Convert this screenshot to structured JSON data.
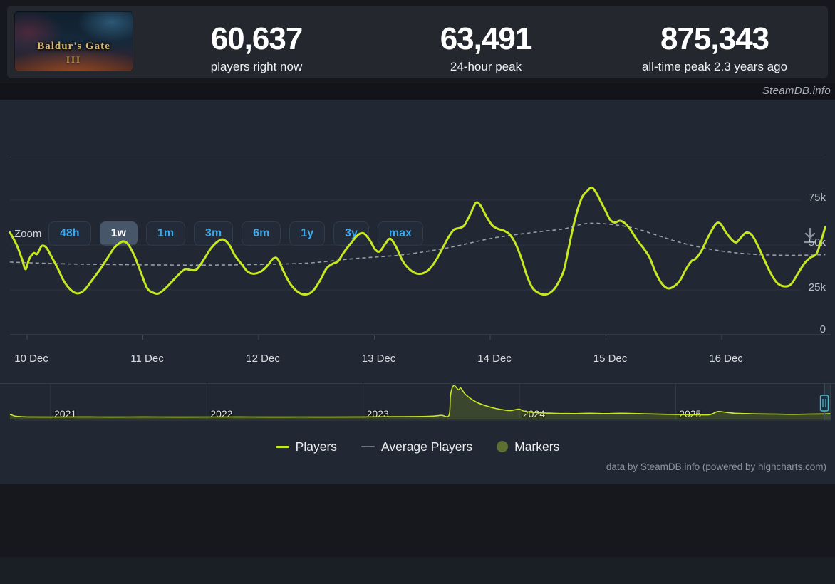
{
  "header": {
    "game_capsule": {
      "title": "Baldur's Gate",
      "numeral": "III"
    },
    "stats": [
      {
        "value": "60,637",
        "label": "players right now"
      },
      {
        "value": "63,491",
        "label": "24-hour peak"
      },
      {
        "value": "875,343",
        "label": "all-time peak 2.3 years ago"
      }
    ]
  },
  "watermark": "SteamDB.info",
  "toolbar": {
    "zoom_label": "Zoom",
    "ranges": [
      {
        "label": "48h",
        "selected": false
      },
      {
        "label": "1w",
        "selected": true
      },
      {
        "label": "1m",
        "selected": false
      },
      {
        "label": "3m",
        "selected": false
      },
      {
        "label": "6m",
        "selected": false
      },
      {
        "label": "1y",
        "selected": false
      },
      {
        "label": "3y",
        "selected": false
      },
      {
        "label": "max",
        "selected": false
      }
    ]
  },
  "legend": {
    "items": [
      {
        "label": "Players",
        "swatch": "line",
        "color": "#c7e821"
      },
      {
        "label": "Average Players",
        "swatch": "line-thin",
        "color": "#6a747c"
      },
      {
        "label": "Markers",
        "swatch": "circle",
        "color": "#5c7031"
      }
    ]
  },
  "footer": "data by SteamDB.info (powered by highcharts.com)",
  "colors": {
    "players_line": "#c7e821",
    "average_line": "#a9b2ba",
    "accent_blue": "#3fa7e8",
    "grid": "#2d3440",
    "axis": "#414b59",
    "y_label": "#b9c1c9",
    "x_label": "#d6dadd",
    "nav_handle": "#54b8cf"
  },
  "chart_data": [
    {
      "type": "line",
      "role": "main",
      "x_axis": {
        "unit": "day",
        "tick_labels": [
          "10 Dec",
          "11 Dec",
          "12 Dec",
          "13 Dec",
          "14 Dec",
          "15 Dec",
          "16 Dec"
        ],
        "range_days": [
          -0.185,
          6.857
        ],
        "grid": false
      },
      "y_axis": {
        "unit": "players (thousands)",
        "ticks": [
          {
            "value_k": 0,
            "label": "0"
          },
          {
            "value_k": 25,
            "label": "25k"
          },
          {
            "value_k": 50,
            "label": "50k"
          },
          {
            "value_k": 75,
            "label": "75k"
          }
        ],
        "range_k": [
          0,
          99
        ],
        "grid": true,
        "labels_position": "right"
      },
      "series": [
        {
          "name": "Players",
          "color": "#c7e821",
          "style": "solid",
          "width": 3,
          "points_day_valuek": [
            [
              -0.185,
              57
            ],
            [
              -0.15,
              53
            ],
            [
              -0.12,
              49
            ],
            [
              -0.08,
              42
            ],
            [
              -0.05,
              36.5
            ],
            [
              -0.02,
              42
            ],
            [
              0.02,
              45.5
            ],
            [
              0.05,
              45
            ],
            [
              0.09,
              49.5
            ],
            [
              0.13,
              48.5
            ],
            [
              0.17,
              44
            ],
            [
              0.22,
              38
            ],
            [
              0.28,
              30
            ],
            [
              0.34,
              25
            ],
            [
              0.4,
              23
            ],
            [
              0.46,
              25
            ],
            [
              0.52,
              30
            ],
            [
              0.6,
              37
            ],
            [
              0.66,
              43
            ],
            [
              0.71,
              48
            ],
            [
              0.76,
              51
            ],
            [
              0.8,
              52
            ],
            [
              0.84,
              50
            ],
            [
              0.89,
              44
            ],
            [
              0.95,
              34
            ],
            [
              1.0,
              26
            ],
            [
              1.05,
              23.5
            ],
            [
              1.1,
              23
            ],
            [
              1.16,
              26
            ],
            [
              1.22,
              30
            ],
            [
              1.28,
              34
            ],
            [
              1.33,
              36.5
            ],
            [
              1.38,
              36
            ],
            [
              1.43,
              36.5
            ],
            [
              1.49,
              42
            ],
            [
              1.55,
              48
            ],
            [
              1.61,
              52
            ],
            [
              1.66,
              53
            ],
            [
              1.71,
              50
            ],
            [
              1.76,
              44
            ],
            [
              1.82,
              39
            ],
            [
              1.87,
              35
            ],
            [
              1.93,
              34
            ],
            [
              1.99,
              35.5
            ],
            [
              2.04,
              38.5
            ],
            [
              2.09,
              42.5
            ],
            [
              2.13,
              42
            ],
            [
              2.18,
              35
            ],
            [
              2.24,
              28
            ],
            [
              2.31,
              23.5
            ],
            [
              2.38,
              22.5
            ],
            [
              2.44,
              25
            ],
            [
              2.5,
              31
            ],
            [
              2.55,
              37
            ],
            [
              2.6,
              39.5
            ],
            [
              2.65,
              41
            ],
            [
              2.7,
              46
            ],
            [
              2.76,
              51
            ],
            [
              2.82,
              55.5
            ],
            [
              2.87,
              56.5
            ],
            [
              2.92,
              53
            ],
            [
              2.97,
              47.5
            ],
            [
              3.01,
              46.5
            ],
            [
              3.06,
              51
            ],
            [
              3.1,
              53.5
            ],
            [
              3.15,
              49
            ],
            [
              3.2,
              42
            ],
            [
              3.25,
              37.5
            ],
            [
              3.31,
              34.5
            ],
            [
              3.37,
              34
            ],
            [
              3.43,
              36
            ],
            [
              3.49,
              41
            ],
            [
              3.55,
              48
            ],
            [
              3.6,
              54
            ],
            [
              3.65,
              58.5
            ],
            [
              3.7,
              59.5
            ],
            [
              3.74,
              61
            ],
            [
              3.79,
              67
            ],
            [
              3.84,
              73.5
            ],
            [
              3.88,
              72
            ],
            [
              3.93,
              66
            ],
            [
              3.98,
              61
            ],
            [
              4.03,
              59
            ],
            [
              4.08,
              58
            ],
            [
              4.13,
              56
            ],
            [
              4.18,
              51
            ],
            [
              4.23,
              43
            ],
            [
              4.28,
              33
            ],
            [
              4.33,
              26
            ],
            [
              4.39,
              23
            ],
            [
              4.45,
              22.5
            ],
            [
              4.51,
              25
            ],
            [
              4.56,
              30
            ],
            [
              4.6,
              36
            ],
            [
              4.64,
              48
            ],
            [
              4.68,
              60
            ],
            [
              4.72,
              70
            ],
            [
              4.76,
              77
            ],
            [
              4.8,
              80
            ],
            [
              4.84,
              82
            ],
            [
              4.88,
              79
            ],
            [
              4.92,
              74
            ],
            [
              4.96,
              69
            ],
            [
              5.0,
              64
            ],
            [
              5.04,
              62.5
            ],
            [
              5.08,
              63.5
            ],
            [
              5.12,
              62.5
            ],
            [
              5.17,
              59
            ],
            [
              5.23,
              53
            ],
            [
              5.29,
              48
            ],
            [
              5.34,
              43
            ],
            [
              5.39,
              35
            ],
            [
              5.44,
              29
            ],
            [
              5.49,
              26
            ],
            [
              5.54,
              26.5
            ],
            [
              5.6,
              30
            ],
            [
              5.65,
              36
            ],
            [
              5.7,
              41
            ],
            [
              5.74,
              42.5
            ],
            [
              5.79,
              47
            ],
            [
              5.85,
              55
            ],
            [
              5.91,
              61.5
            ],
            [
              5.95,
              62
            ],
            [
              6.0,
              57
            ],
            [
              6.05,
              53
            ],
            [
              6.09,
              51.5
            ],
            [
              6.14,
              55
            ],
            [
              6.18,
              57
            ],
            [
              6.23,
              55
            ],
            [
              6.28,
              49
            ],
            [
              6.33,
              42
            ],
            [
              6.38,
              35
            ],
            [
              6.44,
              29
            ],
            [
              6.5,
              27
            ],
            [
              6.56,
              28
            ],
            [
              6.62,
              34
            ],
            [
              6.68,
              40
            ],
            [
              6.73,
              43
            ],
            [
              6.78,
              45
            ],
            [
              6.82,
              52
            ],
            [
              6.857,
              60
            ]
          ]
        },
        {
          "name": "Average Players",
          "color": "#a9b2ba",
          "style": "dashed",
          "width": 1.6,
          "points_day_valuek": [
            [
              -0.185,
              40.5
            ],
            [
              0.3,
              39.5
            ],
            [
              0.9,
              39
            ],
            [
              1.5,
              38.8
            ],
            [
              2.0,
              39.2
            ],
            [
              2.4,
              40
            ],
            [
              2.8,
              42.5
            ],
            [
              3.2,
              44.5
            ],
            [
              3.6,
              48.5
            ],
            [
              4.0,
              54
            ],
            [
              4.4,
              57.5
            ],
            [
              4.6,
              59
            ],
            [
              4.8,
              62
            ],
            [
              5.0,
              61.5
            ],
            [
              5.2,
              59.5
            ],
            [
              5.4,
              55.5
            ],
            [
              5.6,
              51.5
            ],
            [
              5.8,
              48.5
            ],
            [
              6.0,
              46.3
            ],
            [
              6.2,
              45
            ],
            [
              6.4,
              44.4
            ],
            [
              6.6,
              44.3
            ],
            [
              6.857,
              44.6
            ]
          ]
        }
      ]
    },
    {
      "type": "area",
      "role": "navigator",
      "x_axis": {
        "unit": "year",
        "tick_labels": [
          "2021",
          "2022",
          "2023",
          "2024",
          "2025"
        ],
        "range_years": [
          2020.74,
          2025.99
        ],
        "grid": true
      },
      "selected_window": "last week (right edge)",
      "series": [
        {
          "name": "Players (all time)",
          "color": "#c7e821",
          "fill": "rgba(199,232,33,0.16)",
          "points_year_fraction": [
            [
              2020.74,
              0.13
            ],
            [
              2020.78,
              0.07
            ],
            [
              2020.85,
              0.055
            ],
            [
              2021.0,
              0.05
            ],
            [
              2021.2,
              0.055
            ],
            [
              2021.4,
              0.05
            ],
            [
              2021.6,
              0.055
            ],
            [
              2021.8,
              0.05
            ],
            [
              2022.0,
              0.052
            ],
            [
              2022.2,
              0.055
            ],
            [
              2022.4,
              0.05
            ],
            [
              2022.6,
              0.053
            ],
            [
              2022.8,
              0.05
            ],
            [
              2023.0,
              0.055
            ],
            [
              2023.2,
              0.06
            ],
            [
              2023.42,
              0.07
            ],
            [
              2023.5,
              0.1
            ],
            [
              2023.55,
              0.1
            ],
            [
              2023.56,
              0.7
            ],
            [
              2023.58,
              0.97
            ],
            [
              2023.61,
              0.85
            ],
            [
              2023.625,
              0.9
            ],
            [
              2023.65,
              0.74
            ],
            [
              2023.68,
              0.62
            ],
            [
              2023.72,
              0.5
            ],
            [
              2023.76,
              0.42
            ],
            [
              2023.8,
              0.36
            ],
            [
              2023.85,
              0.3
            ],
            [
              2023.9,
              0.26
            ],
            [
              2023.94,
              0.24
            ],
            [
              2023.97,
              0.26
            ],
            [
              2024.0,
              0.28
            ],
            [
              2024.03,
              0.22
            ],
            [
              2024.08,
              0.19
            ],
            [
              2024.15,
              0.17
            ],
            [
              2024.25,
              0.155
            ],
            [
              2024.35,
              0.15
            ],
            [
              2024.45,
              0.16
            ],
            [
              2024.55,
              0.15
            ],
            [
              2024.65,
              0.16
            ],
            [
              2024.75,
              0.15
            ],
            [
              2024.85,
              0.14
            ],
            [
              2024.95,
              0.13
            ],
            [
              2025.05,
              0.12
            ],
            [
              2025.15,
              0.115
            ],
            [
              2025.22,
              0.12
            ],
            [
              2025.27,
              0.21
            ],
            [
              2025.32,
              0.19
            ],
            [
              2025.38,
              0.16
            ],
            [
              2025.45,
              0.15
            ],
            [
              2025.55,
              0.14
            ],
            [
              2025.65,
              0.135
            ],
            [
              2025.75,
              0.13
            ],
            [
              2025.85,
              0.135
            ],
            [
              2025.95,
              0.14
            ],
            [
              2025.99,
              0.15
            ]
          ]
        }
      ]
    }
  ]
}
